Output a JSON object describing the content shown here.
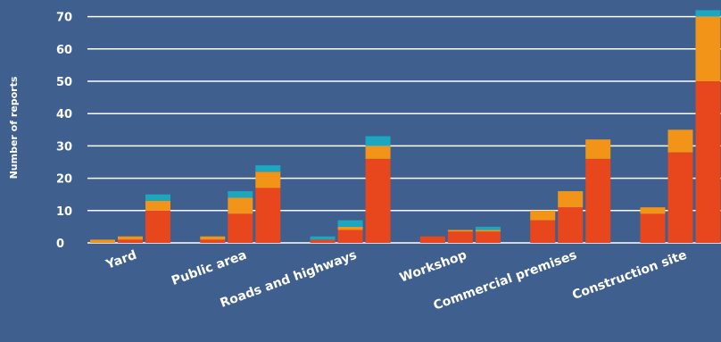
{
  "chart_data": {
    "type": "bar",
    "stacked": true,
    "ylabel": "Number of reports",
    "xlabel": "",
    "ylim": [
      0,
      72
    ],
    "yticks": [
      0,
      10,
      20,
      30,
      40,
      50,
      60,
      70
    ],
    "grid": "horizontal",
    "categories": [
      "Yard",
      "Public area",
      "Roads and highways",
      "Workshop",
      "Commercial premises",
      "Construction site"
    ],
    "bars_per_category": 3,
    "colors": {
      "red": "#e8461c",
      "orange": "#f29417",
      "teal": "#1aa7bf",
      "grid": "#ffffff",
      "background": "#3f5f8e"
    },
    "series": [
      {
        "color": "red",
        "values": [
          [
            0,
            1,
            10
          ],
          [
            1,
            9,
            17
          ],
          [
            1,
            4,
            26
          ],
          [
            2,
            3.5,
            3.5
          ],
          [
            7,
            11,
            26
          ],
          [
            9,
            28,
            50
          ]
        ]
      },
      {
        "color": "orange",
        "values": [
          [
            1,
            1,
            3
          ],
          [
            1,
            5,
            5
          ],
          [
            0,
            1,
            4
          ],
          [
            0,
            0.5,
            0.5
          ],
          [
            3,
            5,
            6
          ],
          [
            2,
            7,
            20
          ]
        ]
      },
      {
        "color": "teal",
        "values": [
          [
            0,
            0,
            2
          ],
          [
            0,
            2,
            2
          ],
          [
            1,
            2,
            3
          ],
          [
            0,
            0,
            1
          ],
          [
            0,
            0,
            0
          ],
          [
            0,
            0,
            2
          ]
        ]
      }
    ]
  }
}
